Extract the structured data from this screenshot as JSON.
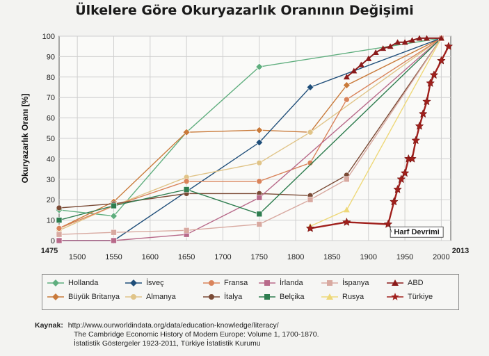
{
  "title": "Ülkelere Göre Okuryazarlık Oranının Değişimi",
  "colors": {
    "Hollanda": "#5fae7e",
    "İsveç": "#1f4e79",
    "Fransa": "#d9835a",
    "İrlanda": "#b86a8a",
    "İspanya": "#d8a9a0",
    "ABD": "#8b1a1a",
    "Büyük Britanya": "#c97a3a",
    "Almanya": "#e0c488",
    "İtalya": "#7a4a35",
    "Belçika": "#2e7d4f",
    "Rusya": "#eed878",
    "Türkiye": "#a0201c"
  },
  "chart_data": {
    "type": "line",
    "title": "Ülkelere Göre Okuryazarlık Oranının Değişimi",
    "xlabel": "",
    "ylabel": "Okuryazarlık Oranı [%]",
    "ylim": [
      0,
      100
    ],
    "xlim": [
      1475,
      2013
    ],
    "x_ticks": [
      "1475",
      "1500",
      "1550",
      "1600",
      "1650",
      "1700",
      "1750",
      "1800",
      "1850",
      "1900",
      "1950",
      "2000",
      "2013"
    ],
    "y_ticks": [
      "0",
      "10",
      "20",
      "30",
      "40",
      "50",
      "60",
      "70",
      "80",
      "90",
      "100"
    ],
    "annotation": "Harf Devrimi",
    "series": [
      {
        "name": "Hollanda",
        "marker": "diamond",
        "points": [
          [
            1475,
            15
          ],
          [
            1550,
            12
          ],
          [
            1650,
            53
          ],
          [
            1750,
            85
          ],
          [
            2000,
            99
          ]
        ]
      },
      {
        "name": "Büyük Britanya",
        "marker": "diamond",
        "points": [
          [
            1475,
            6
          ],
          [
            1550,
            19
          ],
          [
            1650,
            53
          ],
          [
            1750,
            54
          ],
          [
            1820,
            53
          ],
          [
            1870,
            76
          ],
          [
            2000,
            99
          ]
        ]
      },
      {
        "name": "İsveç",
        "marker": "diamond",
        "points": [
          [
            1475,
            0
          ],
          [
            1550,
            0
          ],
          [
            1750,
            48
          ],
          [
            1820,
            75
          ],
          [
            2000,
            99
          ]
        ]
      },
      {
        "name": "Almanya",
        "marker": "circle",
        "points": [
          [
            1475,
            5
          ],
          [
            1550,
            17
          ],
          [
            1650,
            31
          ],
          [
            1750,
            38
          ],
          [
            1820,
            53
          ],
          [
            2000,
            99
          ]
        ]
      },
      {
        "name": "Fransa",
        "marker": "circle",
        "points": [
          [
            1475,
            6
          ],
          [
            1550,
            17
          ],
          [
            1650,
            29
          ],
          [
            1750,
            29
          ],
          [
            1820,
            38
          ],
          [
            1870,
            69
          ],
          [
            2000,
            99
          ]
        ]
      },
      {
        "name": "İtalya",
        "marker": "circle",
        "points": [
          [
            1475,
            16
          ],
          [
            1550,
            18
          ],
          [
            1650,
            23
          ],
          [
            1750,
            23
          ],
          [
            1820,
            22
          ],
          [
            1870,
            32
          ],
          [
            2000,
            99
          ]
        ]
      },
      {
        "name": "İrlanda",
        "marker": "square",
        "points": [
          [
            1475,
            0
          ],
          [
            1550,
            0
          ],
          [
            1650,
            3
          ],
          [
            1750,
            21
          ],
          [
            2000,
            99
          ]
        ]
      },
      {
        "name": "Belçika",
        "marker": "square",
        "points": [
          [
            1475,
            10
          ],
          [
            1550,
            17
          ],
          [
            1650,
            25
          ],
          [
            1750,
            13
          ],
          [
            2000,
            99
          ]
        ]
      },
      {
        "name": "İspanya",
        "marker": "square",
        "points": [
          [
            1475,
            3
          ],
          [
            1550,
            4
          ],
          [
            1650,
            5
          ],
          [
            1750,
            8
          ],
          [
            1820,
            20
          ],
          [
            1870,
            30
          ],
          [
            2000,
            99
          ]
        ]
      },
      {
        "name": "Rusya",
        "marker": "triangle",
        "points": [
          [
            1820,
            7
          ],
          [
            1870,
            15
          ],
          [
            2000,
            99
          ]
        ]
      },
      {
        "name": "ABD",
        "marker": "triangle",
        "points": [
          [
            1870,
            80
          ],
          [
            1880,
            83
          ],
          [
            1890,
            86
          ],
          [
            1900,
            89
          ],
          [
            1910,
            92
          ],
          [
            1920,
            94
          ],
          [
            1930,
            95
          ],
          [
            1940,
            97
          ],
          [
            1950,
            97
          ],
          [
            1960,
            98
          ],
          [
            1970,
            99
          ],
          [
            1980,
            99
          ],
          [
            2000,
            99
          ]
        ]
      },
      {
        "name": "Türkiye",
        "marker": "star",
        "points": [
          [
            1820,
            6
          ],
          [
            1870,
            9
          ],
          [
            1927,
            8
          ],
          [
            1935,
            19
          ],
          [
            1940,
            25
          ],
          [
            1945,
            30
          ],
          [
            1950,
            33
          ],
          [
            1955,
            40
          ],
          [
            1960,
            40
          ],
          [
            1965,
            49
          ],
          [
            1970,
            56
          ],
          [
            1975,
            62
          ],
          [
            1980,
            68
          ],
          [
            1985,
            77
          ],
          [
            1990,
            81
          ],
          [
            2000,
            88
          ],
          [
            2010,
            95
          ]
        ]
      }
    ]
  },
  "legend": {
    "row1": [
      "Hollanda",
      "İsveç",
      "Fransa",
      "İrlanda",
      "İspanya",
      "ABD"
    ],
    "row2": [
      "Büyük Britanya",
      "Almanya",
      "İtalya",
      "Belçika",
      "Rusya",
      "Türkiye"
    ]
  },
  "source": {
    "label": "Kaynak:",
    "line1": "http://www.ourworldindata.org/data/education-knowledge/literacy/",
    "line2": "The Cambridge Economic History of Modern Europe: Volume 1, 1700-1870.",
    "line3": "İstatistik Göstergeler 1923-2011, Türkiye İstatistik Kurumu"
  }
}
